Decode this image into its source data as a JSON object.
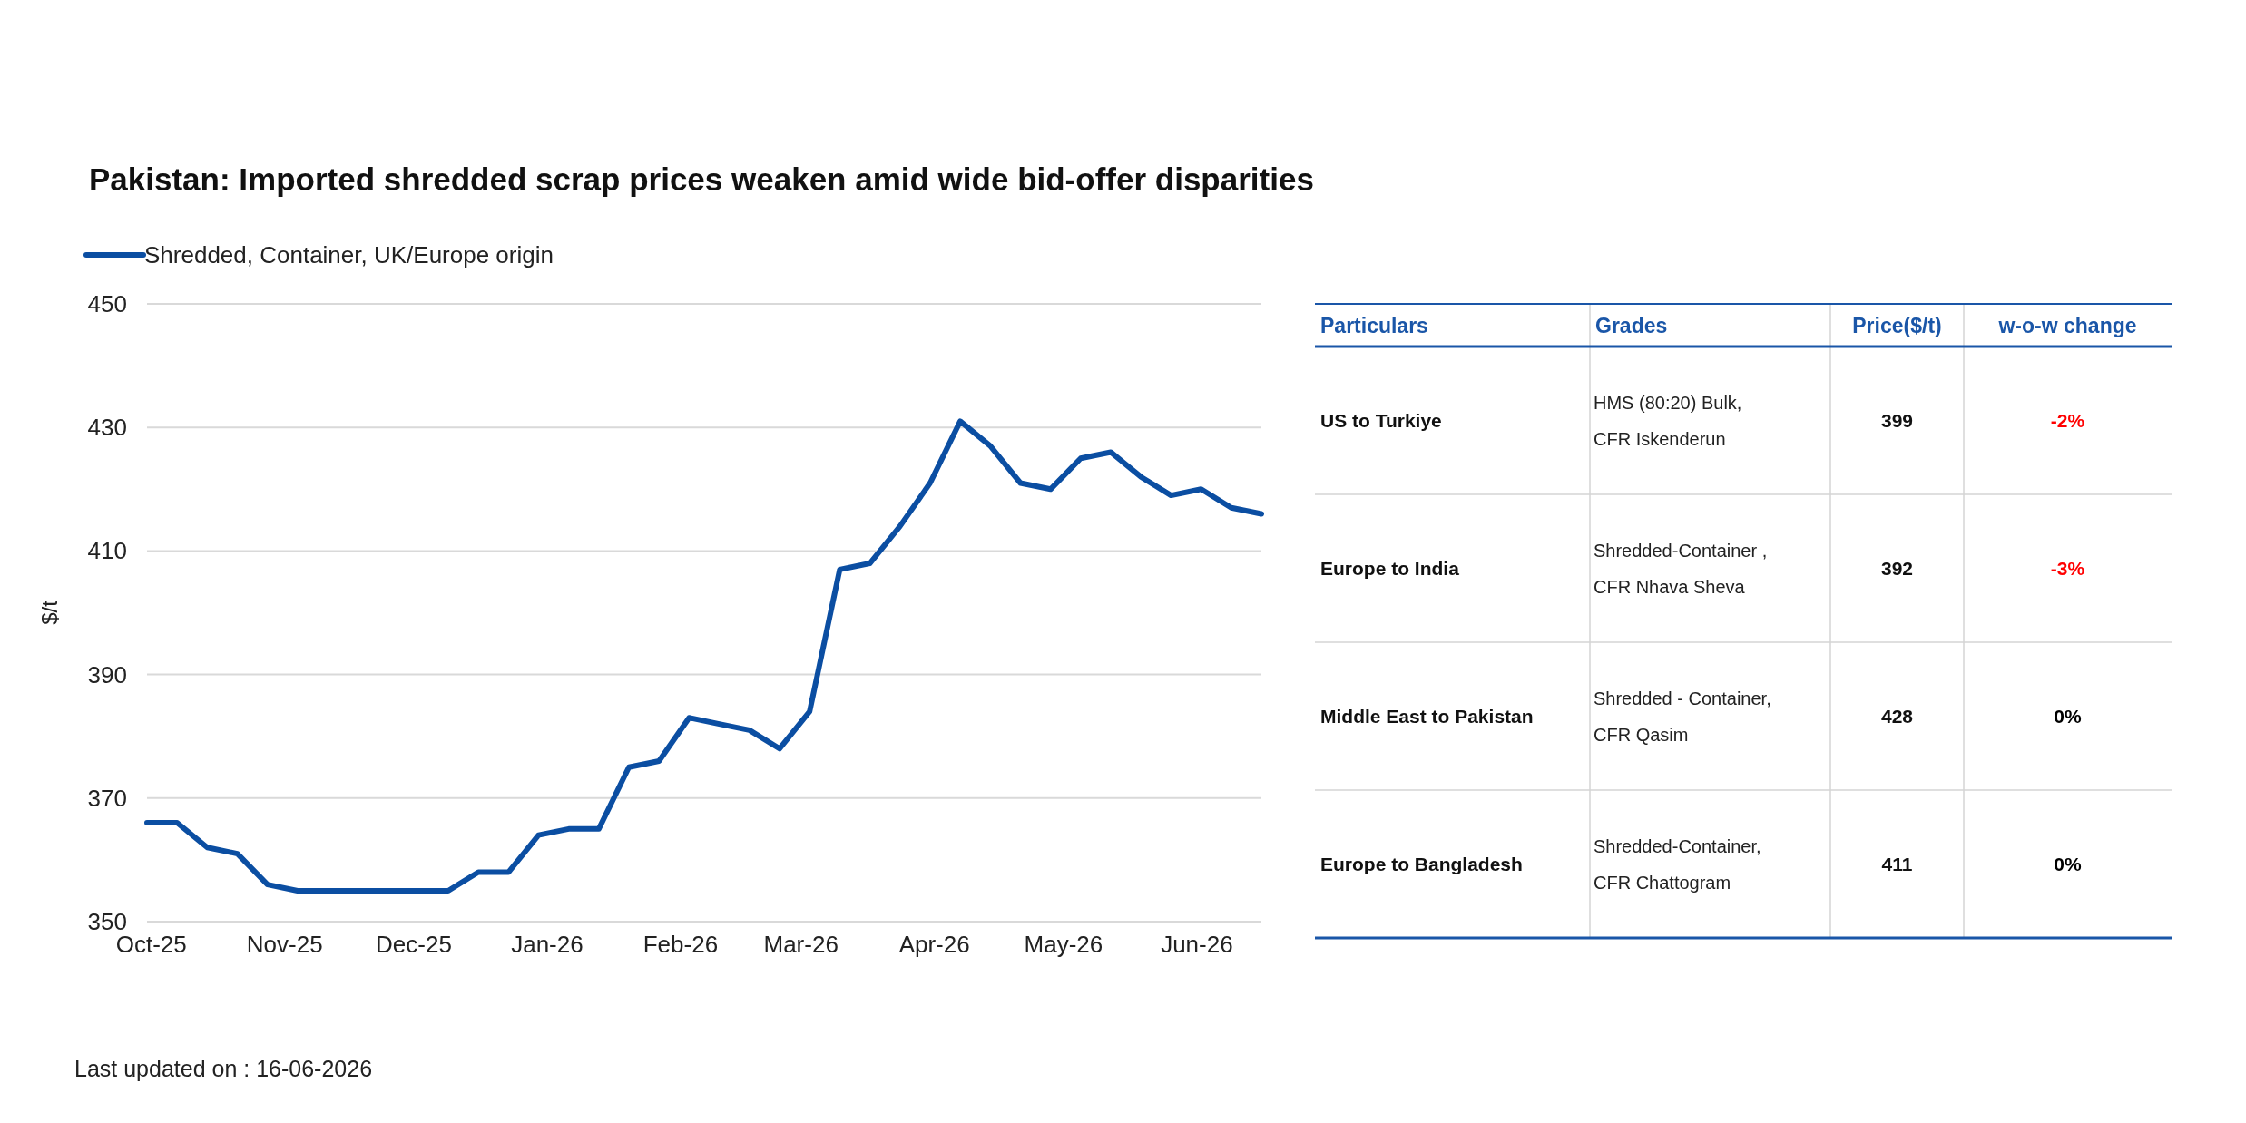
{
  "chart_data": [
    {
      "type": "line",
      "title": "Pakistan: Imported shredded scrap prices weaken amid wide bid-offer disparities",
      "ylabel": "$/t",
      "x": [
        "2025-09-30",
        "2025-10-07",
        "2025-10-14",
        "2025-10-21",
        "2025-10-28",
        "2025-11-04",
        "2025-11-11",
        "2025-11-18",
        "2025-11-25",
        "2025-12-02",
        "2025-12-09",
        "2025-12-16",
        "2025-12-23",
        "2025-12-30",
        "2026-01-06",
        "2026-01-13",
        "2026-01-20",
        "2026-01-27",
        "2026-02-03",
        "2026-02-10",
        "2026-02-17",
        "2026-02-24",
        "2026-03-03",
        "2026-03-10",
        "2026-03-17",
        "2026-03-24",
        "2026-03-31",
        "2026-04-07",
        "2026-04-14",
        "2026-04-21",
        "2026-04-28",
        "2026-05-05",
        "2026-05-12",
        "2026-05-19",
        "2026-05-26",
        "2026-06-02",
        "2026-06-09",
        "2026-06-16"
      ],
      "series": [
        {
          "name": "Shredded, Container, UK/Europe origin",
          "color": "#0b4ea2",
          "values": [
            366,
            366,
            362,
            361,
            356,
            355,
            355,
            355,
            355,
            355,
            355,
            358,
            358,
            364,
            365,
            365,
            375,
            376,
            383,
            382,
            381,
            378,
            384,
            407,
            408,
            414,
            421,
            431,
            427,
            421,
            420,
            425,
            426,
            422,
            419,
            420,
            417,
            416
          ]
        }
      ],
      "xlim": [
        "2025-09-30",
        "2026-06-16"
      ],
      "xticks": [
        {
          "value": "2025-10-01",
          "label": "Oct-25"
        },
        {
          "value": "2025-11-01",
          "label": "Nov-25"
        },
        {
          "value": "2025-12-01",
          "label": "Dec-25"
        },
        {
          "value": "2026-01-01",
          "label": "Jan-26"
        },
        {
          "value": "2026-02-01",
          "label": "Feb-26"
        },
        {
          "value": "2026-03-01",
          "label": "Mar-26"
        },
        {
          "value": "2026-04-01",
          "label": "Apr-26"
        },
        {
          "value": "2026-05-01",
          "label": "May-26"
        },
        {
          "value": "2026-06-01",
          "label": "Jun-26"
        }
      ],
      "ylim": [
        350,
        450
      ],
      "yticks": [
        350,
        370,
        390,
        410,
        430,
        450
      ],
      "grid": "y",
      "legend": "top left",
      "annotations": [
        "Last updated on : 16-06-2026"
      ]
    },
    {
      "type": "other",
      "annotations": [
        "Particulars",
        "Grades"
      ],
      "categories": [
        "US to Turkiye",
        "Europe to India",
        "Middle East to Pakistan",
        "Europe to Bangladesh"
      ],
      "y2_categories": [
        "HMS (80:20) Bulk, CFR Iskenderun",
        "Shredded-Container , CFR Nhava Sheva",
        "Shredded - Container, CFR Qasim",
        "Shredded-Container, CFR Chattogram"
      ],
      "series": [
        {
          "name": "Price($/t)",
          "values": [
            399,
            392,
            428,
            411
          ]
        },
        {
          "name": "w-o-w change",
          "colors": [
            "#ff0000",
            "#ff0000",
            "#000000",
            "#000000"
          ],
          "values": [
            -2,
            -3,
            0,
            0
          ],
          "value_labels": [
            "-2%",
            "-3%",
            "0%",
            "0%"
          ]
        }
      ],
      "data_labels": true
    }
  ]
}
